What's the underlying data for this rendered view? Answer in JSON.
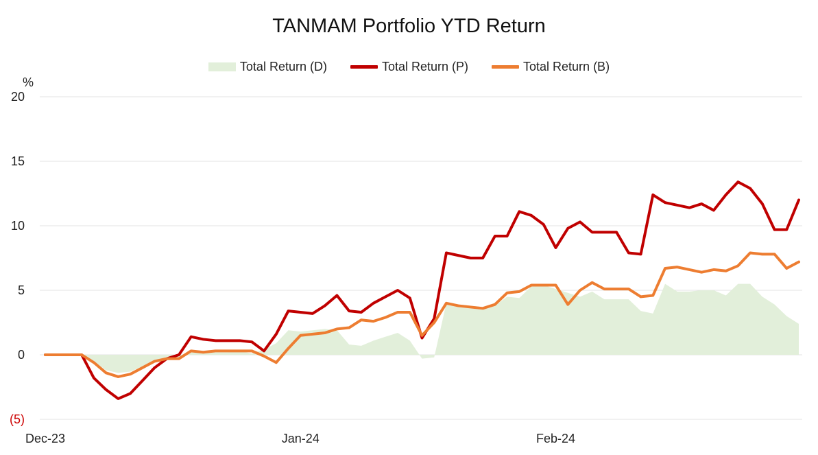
{
  "chart_data": {
    "type": "line",
    "title": "TANMAM Portfolio YTD Return",
    "ylabel": "%",
    "xlabel": "",
    "ylim": [
      -5,
      20
    ],
    "y_ticks": [
      {
        "value": 20,
        "label": "20"
      },
      {
        "value": 15,
        "label": "15"
      },
      {
        "value": 10,
        "label": "10"
      },
      {
        "value": 5,
        "label": "5"
      },
      {
        "value": 0,
        "label": "0"
      },
      {
        "value": -5,
        "label": "(5)"
      }
    ],
    "x_ticks": [
      {
        "index": 0,
        "label": "Dec-23"
      },
      {
        "index": 21,
        "label": "Jan-24"
      },
      {
        "index": 42,
        "label": "Feb-24"
      }
    ],
    "grid": true,
    "legend_position": "top",
    "x_count": 63,
    "series": [
      {
        "name": "Total Return (D)",
        "kind": "area",
        "color": "#e2efda",
        "values": [
          0,
          0,
          0,
          0,
          -0.5,
          -1.2,
          -1.4,
          -1.3,
          -0.9,
          -0.5,
          -0.3,
          -0.2,
          0.3,
          0.3,
          0.2,
          0.2,
          0.3,
          0.1,
          0.4,
          0.9,
          1.9,
          1.8,
          1.9,
          2.0,
          1.9,
          0.8,
          0.7,
          1.1,
          1.4,
          1.7,
          1.1,
          -0.3,
          -0.2,
          4.0,
          3.9,
          3.8,
          3.7,
          3.8,
          4.5,
          4.4,
          5.3,
          5.4,
          5.1,
          4.8,
          4.5,
          4.9,
          4.3,
          4.3,
          4.3,
          3.4,
          3.2,
          5.5,
          4.9,
          4.9,
          5.0,
          5.0,
          4.6,
          5.5,
          5.5,
          4.5,
          3.9,
          3.0,
          2.4
        ]
      },
      {
        "name": "Total Return (P)",
        "kind": "line",
        "color": "#c00000",
        "values": [
          0,
          0,
          0,
          0,
          -1.8,
          -2.7,
          -3.4,
          -3.0,
          -2.0,
          -1.0,
          -0.3,
          0,
          1.4,
          1.2,
          1.1,
          1.1,
          1.1,
          1.0,
          0.3,
          1.6,
          3.4,
          3.3,
          3.2,
          3.8,
          4.6,
          3.4,
          3.3,
          4.0,
          4.5,
          5.0,
          4.4,
          1.3,
          2.8,
          7.9,
          7.7,
          7.5,
          7.5,
          9.2,
          9.2,
          11.1,
          10.8,
          10.1,
          8.3,
          9.8,
          10.3,
          9.5,
          9.5,
          9.5,
          7.9,
          7.8,
          12.4,
          11.8,
          11.6,
          11.4,
          11.7,
          11.2,
          12.4,
          13.4,
          12.9,
          11.7,
          9.7,
          9.7,
          12.0
        ]
      },
      {
        "name": "Total Return (B)",
        "kind": "line",
        "color": "#ed7d31",
        "values": [
          0,
          0,
          0,
          0,
          -0.6,
          -1.4,
          -1.7,
          -1.5,
          -1.0,
          -0.5,
          -0.3,
          -0.3,
          0.3,
          0.2,
          0.3,
          0.3,
          0.3,
          0.3,
          -0.1,
          -0.6,
          0.5,
          1.5,
          1.6,
          1.7,
          2.0,
          2.1,
          2.7,
          2.6,
          2.9,
          3.3,
          3.3,
          1.5,
          2.5,
          4.0,
          3.8,
          3.7,
          3.6,
          3.9,
          4.8,
          4.9,
          5.4,
          5.4,
          5.4,
          3.9,
          5.0,
          5.6,
          5.1,
          5.1,
          5.1,
          4.5,
          4.6,
          6.7,
          6.8,
          6.6,
          6.4,
          6.6,
          6.5,
          6.9,
          7.9,
          7.8,
          7.8,
          6.7,
          7.2
        ]
      }
    ]
  }
}
